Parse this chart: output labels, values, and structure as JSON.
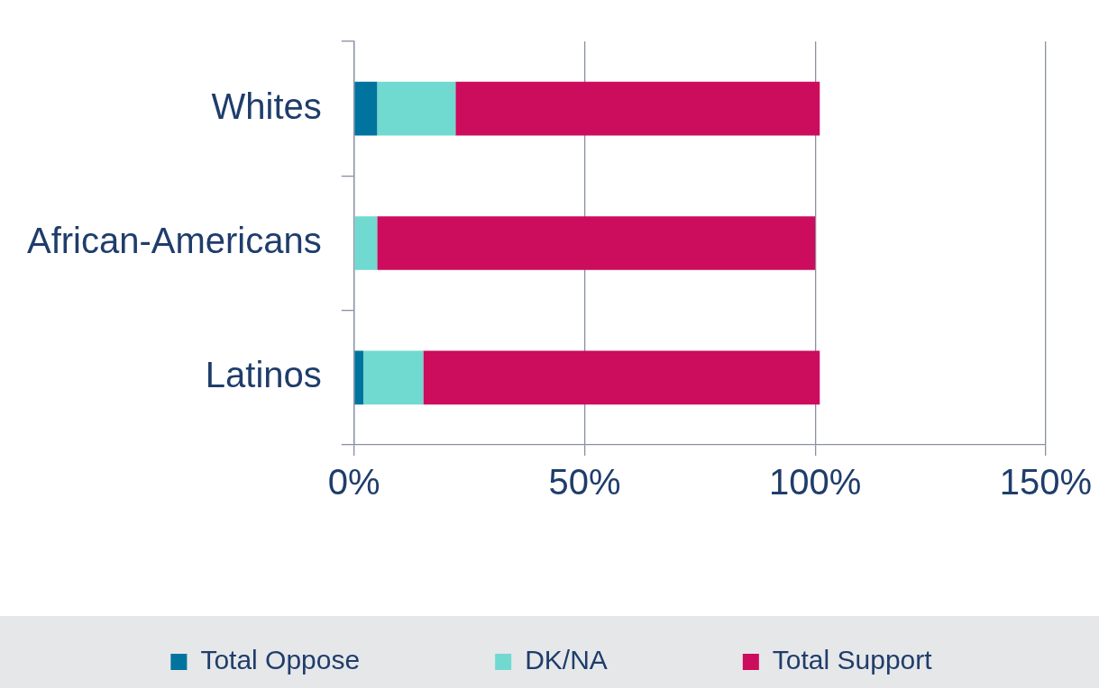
{
  "chart_data": {
    "type": "bar",
    "orientation": "horizontal",
    "stacked": true,
    "categories": [
      "Whites",
      "African-Americans",
      "Latinos"
    ],
    "series": [
      {
        "name": "Total Oppose",
        "color": "#00739e",
        "values": [
          5,
          0,
          2
        ]
      },
      {
        "name": "DK/NA",
        "color": "#70d9d0",
        "values": [
          17,
          5,
          13
        ]
      },
      {
        "name": "Total Support",
        "color": "#cc0c5c",
        "values": [
          79,
          95,
          86
        ]
      }
    ],
    "xlim": [
      0,
      150
    ],
    "xticks": [
      {
        "value": 0,
        "label": "0%"
      },
      {
        "value": 50,
        "label": "50%"
      },
      {
        "value": 100,
        "label": "100%"
      },
      {
        "value": 150,
        "label": "150%"
      }
    ],
    "grid": "x",
    "legend": "bottom"
  }
}
